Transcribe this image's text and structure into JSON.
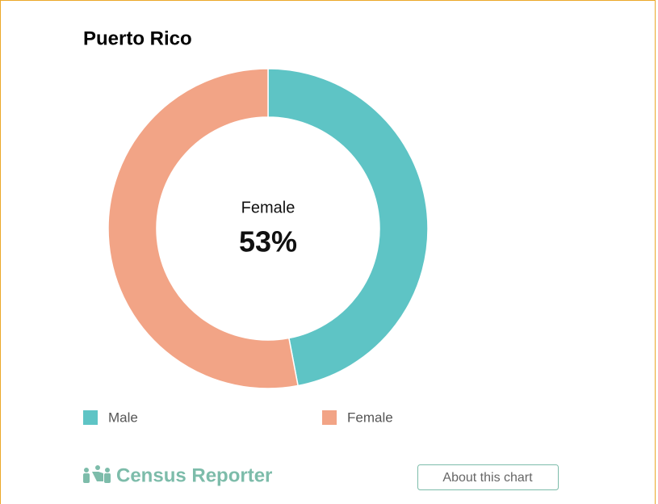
{
  "chart_data": {
    "type": "donut",
    "title": "Puerto Rico",
    "categories": [
      "Male",
      "Female"
    ],
    "values": [
      47,
      53
    ],
    "value_labels": [
      null,
      "53%"
    ],
    "colors": [
      "#5ec4c5",
      "#f2a486"
    ],
    "highlight": 1,
    "brand": "Census Reporter",
    "button": "About this chart"
  }
}
